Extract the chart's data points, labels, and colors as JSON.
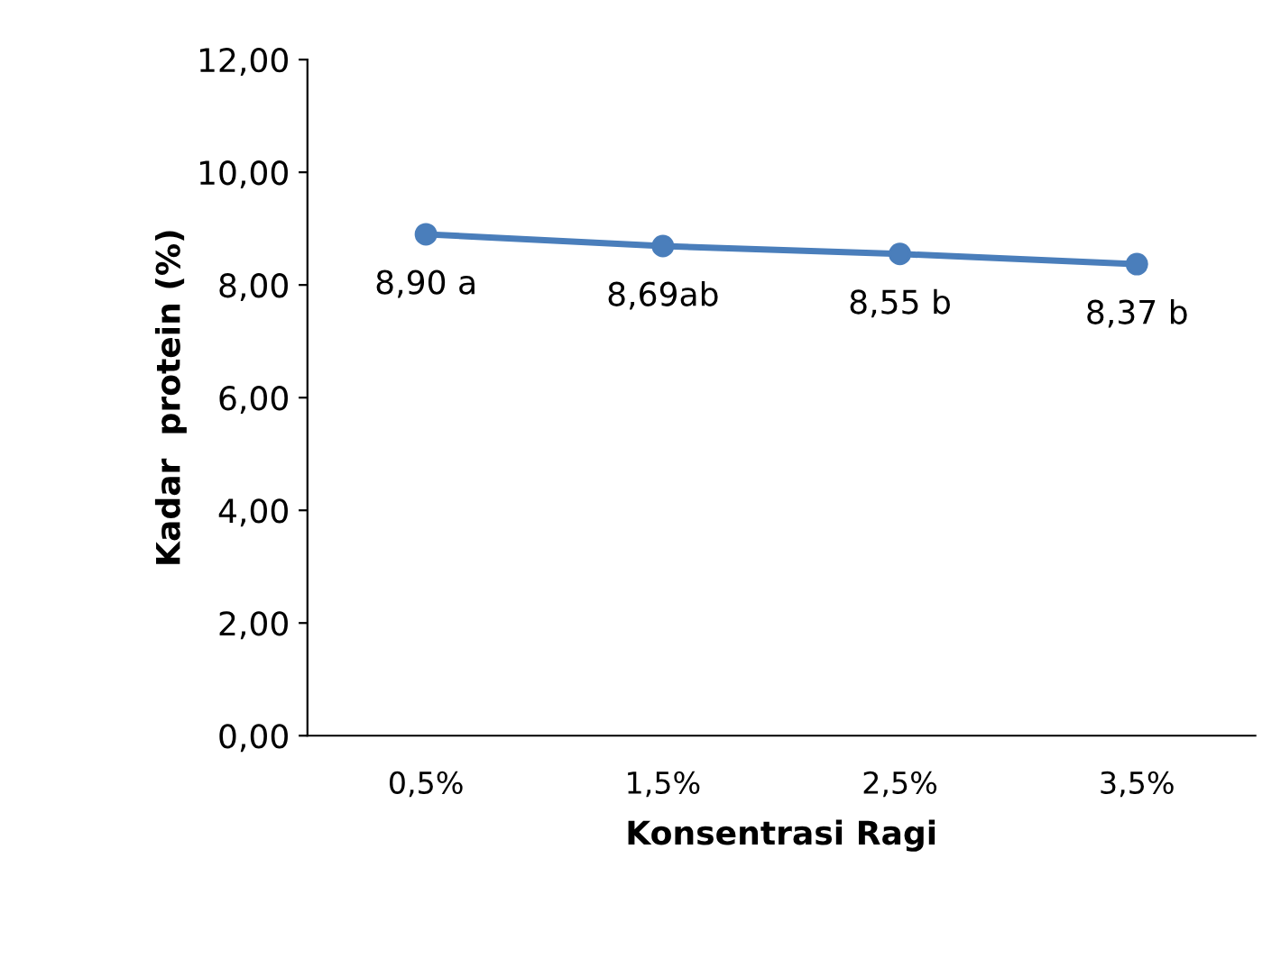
{
  "chart_data": {
    "type": "line",
    "xlabel": "Konsentrasi Ragi",
    "ylabel": "Kadar  protein (%)",
    "categories": [
      "0,5%",
      "1,5%",
      "2,5%",
      "3,5%"
    ],
    "series": [
      {
        "color": "#4a7ebb",
        "values": [
          8.9,
          8.69,
          8.55,
          8.37
        ],
        "value_labels": [
          "8,90 a",
          "8,69ab",
          "8,55 b",
          "8,37 b"
        ]
      }
    ],
    "ylim": [
      0,
      12
    ],
    "yticks": [
      {
        "value": 0,
        "label": "0,00"
      },
      {
        "value": 2,
        "label": "2,00"
      },
      {
        "value": 4,
        "label": "4,00"
      },
      {
        "value": 6,
        "label": "6,00"
      },
      {
        "value": 8,
        "label": "8,00"
      },
      {
        "value": 10,
        "label": "10,00"
      },
      {
        "value": 12,
        "label": "12,00"
      }
    ],
    "marker": "circle",
    "line_style": "solid",
    "grid": false,
    "legend": false
  }
}
